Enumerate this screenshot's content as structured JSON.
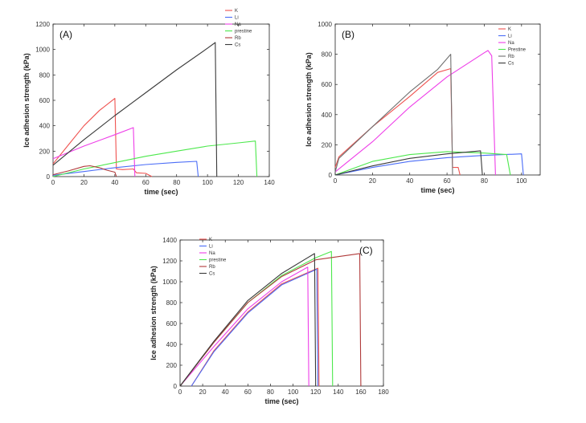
{
  "chart_data": [
    {
      "type": "line",
      "panel_label": "(A)",
      "xlabel": "time (sec)",
      "ylabel": "Ice adhesion strength (kPa)",
      "xlim": [
        0,
        140
      ],
      "ylim": [
        0,
        1200
      ],
      "xticks": [
        "0",
        "20",
        "40",
        "60",
        "80",
        "100",
        "120",
        "140"
      ],
      "yticks": [
        "0",
        "200",
        "400",
        "600",
        "800",
        "1000",
        "1200"
      ],
      "legend_position": "top-right",
      "series": [
        {
          "name": "K",
          "color": "#ef5350",
          "points": [
            [
              0,
              100
            ],
            [
              10,
              250
            ],
            [
              20,
              400
            ],
            [
              30,
              520
            ],
            [
              40,
              615
            ],
            [
              41,
              60
            ],
            [
              45,
              55
            ],
            [
              52,
              60
            ],
            [
              54,
              30
            ],
            [
              60,
              25
            ],
            [
              64,
              0
            ]
          ]
        },
        {
          "name": "Li",
          "color": "#4a6cf7",
          "points": [
            [
              0,
              10
            ],
            [
              20,
              40
            ],
            [
              40,
              70
            ],
            [
              60,
              95
            ],
            [
              80,
              112
            ],
            [
              93,
              120
            ],
            [
              94,
              0
            ]
          ]
        },
        {
          "name": "Na",
          "color": "#ee3ee8",
          "points": [
            [
              0,
              140
            ],
            [
              20,
              240
            ],
            [
              40,
              330
            ],
            [
              52,
              385
            ],
            [
              53,
              0
            ]
          ]
        },
        {
          "name": "prestine",
          "color": "#4ce84c",
          "points": [
            [
              0,
              0
            ],
            [
              20,
              60
            ],
            [
              40,
              110
            ],
            [
              60,
              160
            ],
            [
              80,
              200
            ],
            [
              100,
              240
            ],
            [
              120,
              265
            ],
            [
              131,
              280
            ],
            [
              132,
              0
            ]
          ]
        },
        {
          "name": "Rb",
          "color": "#b03a3a",
          "points": [
            [
              0,
              15
            ],
            [
              10,
              45
            ],
            [
              20,
              80
            ],
            [
              24,
              85
            ],
            [
              30,
              70
            ],
            [
              35,
              50
            ],
            [
              40,
              35
            ],
            [
              41,
              0
            ]
          ]
        },
        {
          "name": "Cs",
          "color": "#3a3a3a",
          "points": [
            [
              0,
              90
            ],
            [
              20,
              290
            ],
            [
              40,
              480
            ],
            [
              60,
              660
            ],
            [
              80,
              840
            ],
            [
              100,
              1010
            ],
            [
              105,
              1055
            ],
            [
              106,
              0
            ]
          ]
        }
      ]
    },
    {
      "type": "line",
      "panel_label": "(B)",
      "xlabel": "time (sec)",
      "ylabel": "Ice adhesion strength (kPa)",
      "xlim": [
        0,
        110
      ],
      "ylim": [
        0,
        1000
      ],
      "xticks": [
        "0",
        "20",
        "40",
        "60",
        "80",
        "100"
      ],
      "yticks": [
        "0",
        "200",
        "400",
        "600",
        "800",
        "1000"
      ],
      "legend_position": "top-right",
      "series": [
        {
          "name": "K",
          "color": "#ef5350",
          "points": [
            [
              0,
              50
            ],
            [
              2,
              120
            ],
            [
              20,
              320
            ],
            [
              40,
              520
            ],
            [
              55,
              680
            ],
            [
              62,
              705
            ],
            [
              63,
              50
            ],
            [
              66,
              50
            ],
            [
              67,
              0
            ]
          ]
        },
        {
          "name": "Li",
          "color": "#4a6cf7",
          "points": [
            [
              0,
              0
            ],
            [
              20,
              50
            ],
            [
              40,
              90
            ],
            [
              60,
              115
            ],
            [
              80,
              130
            ],
            [
              100,
              140
            ],
            [
              101,
              0
            ]
          ]
        },
        {
          "name": "Na",
          "color": "#ee3ee8",
          "points": [
            [
              0,
              20
            ],
            [
              20,
              220
            ],
            [
              40,
              450
            ],
            [
              60,
              650
            ],
            [
              80,
              810
            ],
            [
              82,
              825
            ],
            [
              84,
              790
            ],
            [
              86,
              0
            ]
          ]
        },
        {
          "name": "Prestine",
          "color": "#4ce84c",
          "points": [
            [
              0,
              0
            ],
            [
              20,
              90
            ],
            [
              40,
              135
            ],
            [
              60,
              155
            ],
            [
              80,
              145
            ],
            [
              92,
              135
            ],
            [
              94,
              0
            ]
          ]
        },
        {
          "name": "Rb",
          "color": "#707070",
          "points": [
            [
              0,
              20
            ],
            [
              2,
              110
            ],
            [
              20,
              320
            ],
            [
              40,
              550
            ],
            [
              55,
              700
            ],
            [
              62,
              800
            ],
            [
              63,
              0
            ]
          ]
        },
        {
          "name": "Cs",
          "color": "#3a3a3a",
          "points": [
            [
              0,
              0
            ],
            [
              20,
              60
            ],
            [
              40,
              110
            ],
            [
              60,
              140
            ],
            [
              78,
              160
            ],
            [
              79,
              0
            ]
          ]
        }
      ]
    },
    {
      "type": "line",
      "panel_label": "(C)",
      "xlabel": "time (sec)",
      "ylabel": "Ice adhesion strength (kPa)",
      "xlim": [
        0,
        180
      ],
      "ylim": [
        0,
        1400
      ],
      "xticks": [
        "0",
        "20",
        "40",
        "60",
        "80",
        "100",
        "120",
        "140",
        "160",
        "180"
      ],
      "yticks": [
        "0",
        "200",
        "400",
        "600",
        "800",
        "1000",
        "1200",
        "1400"
      ],
      "legend_position": "top-left",
      "series": [
        {
          "name": "K",
          "color": "#ef5350",
          "points": [
            [
              10,
              0
            ],
            [
              30,
              340
            ],
            [
              60,
              710
            ],
            [
              90,
              980
            ],
            [
              122,
              1130
            ],
            [
              123,
              0
            ]
          ]
        },
        {
          "name": "Li",
          "color": "#4a6cf7",
          "points": [
            [
              10,
              0
            ],
            [
              30,
              330
            ],
            [
              60,
              700
            ],
            [
              90,
              970
            ],
            [
              121,
              1120
            ],
            [
              122,
              0
            ]
          ]
        },
        {
          "name": "Na",
          "color": "#ee3ee8",
          "points": [
            [
              0,
              0
            ],
            [
              30,
              380
            ],
            [
              60,
              740
            ],
            [
              90,
              1000
            ],
            [
              113,
              1140
            ],
            [
              114,
              0
            ]
          ]
        },
        {
          "name": "prestine",
          "color": "#4ce84c",
          "points": [
            [
              0,
              0
            ],
            [
              30,
              420
            ],
            [
              60,
              800
            ],
            [
              90,
              1060
            ],
            [
              120,
              1230
            ],
            [
              134,
              1290
            ],
            [
              135,
              0
            ]
          ]
        },
        {
          "name": "Rb",
          "color": "#b03a3a",
          "points": [
            [
              0,
              0
            ],
            [
              30,
              420
            ],
            [
              60,
              800
            ],
            [
              90,
              1050
            ],
            [
              120,
              1210
            ],
            [
              159,
              1270
            ],
            [
              160,
              0
            ]
          ]
        },
        {
          "name": "Cs",
          "color": "#3a3a3a",
          "points": [
            [
              0,
              0
            ],
            [
              30,
              430
            ],
            [
              60,
              820
            ],
            [
              90,
              1080
            ],
            [
              119,
              1270
            ],
            [
              120,
              0
            ]
          ]
        }
      ]
    }
  ]
}
